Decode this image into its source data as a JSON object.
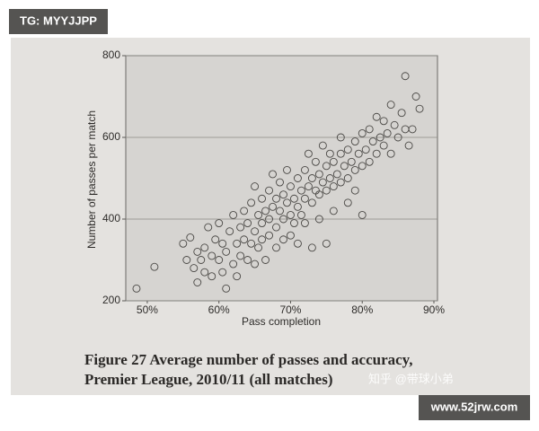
{
  "chart_data": {
    "type": "scatter",
    "title": [
      "Figure 27 Average number of passes and accuracy,",
      "Premier League, 2010/11 (all matches)"
    ],
    "x_label": "Pass completion",
    "y_label": "Number of passes per match",
    "xlim": [
      47,
      90.5
    ],
    "ylim": [
      200,
      800
    ],
    "xticks": [
      {
        "value": 50,
        "label": "50%"
      },
      {
        "value": 60,
        "label": "60%"
      },
      {
        "value": 70,
        "label": "70%"
      },
      {
        "value": 80,
        "label": "80%"
      },
      {
        "value": 90,
        "label": "90%"
      }
    ],
    "yticks": [
      200,
      400,
      600,
      800
    ],
    "grid": true,
    "color": "#4a4845",
    "x": [
      48.5,
      51,
      55,
      55.5,
      56,
      56.5,
      57,
      57,
      57.5,
      58,
      58,
      58.5,
      59,
      59,
      59.5,
      60,
      60,
      60.5,
      60.5,
      61,
      61,
      61.5,
      62,
      62,
      62.5,
      62.5,
      63,
      63,
      63.5,
      63.5,
      64,
      64,
      64.5,
      64.5,
      65,
      65,
      65,
      65.5,
      65.5,
      66,
      66,
      66,
      66.5,
      66.5,
      67,
      67,
      67,
      67.5,
      67.5,
      68,
      68,
      68,
      68.5,
      68.5,
      69,
      69,
      69,
      69.5,
      69.5,
      70,
      70,
      70,
      70.5,
      70.5,
      71,
      71,
      71,
      71.5,
      71.5,
      72,
      72,
      72,
      72.5,
      72.5,
      73,
      73,
      73,
      73.5,
      73.5,
      74,
      74,
      74,
      74.5,
      74.5,
      75,
      75,
      75,
      75.5,
      75.5,
      76,
      76,
      76,
      76.5,
      77,
      77,
      77,
      77.5,
      78,
      78,
      78,
      78.5,
      79,
      79,
      79,
      79.5,
      80,
      80,
      80,
      80.5,
      81,
      81,
      81.5,
      82,
      82,
      82.5,
      83,
      83,
      83.5,
      84,
      84,
      84.5,
      85,
      85.5,
      86,
      86,
      86.5,
      87,
      87.5,
      88
    ],
    "values": [
      230,
      283,
      340,
      300,
      355,
      280,
      320,
      245,
      300,
      330,
      270,
      380,
      310,
      260,
      350,
      300,
      390,
      270,
      340,
      230,
      320,
      370,
      290,
      410,
      340,
      260,
      380,
      310,
      420,
      350,
      300,
      390,
      440,
      340,
      370,
      290,
      480,
      410,
      330,
      390,
      450,
      350,
      420,
      300,
      400,
      470,
      360,
      430,
      510,
      380,
      450,
      330,
      420,
      490,
      400,
      460,
      350,
      440,
      520,
      410,
      480,
      360,
      450,
      390,
      430,
      500,
      340,
      470,
      410,
      450,
      520,
      390,
      480,
      560,
      440,
      500,
      330,
      470,
      540,
      460,
      510,
      400,
      490,
      580,
      470,
      530,
      340,
      500,
      560,
      480,
      540,
      420,
      510,
      490,
      560,
      600,
      530,
      500,
      570,
      440,
      540,
      520,
      590,
      470,
      560,
      530,
      610,
      410,
      570,
      540,
      620,
      590,
      560,
      650,
      600,
      580,
      640,
      610,
      560,
      680,
      630,
      600,
      660,
      750,
      620,
      580,
      620,
      700,
      670
    ]
  },
  "watermarks": {
    "tg": "TG: MYYJJPP",
    "zhihu": "知乎 @带球小弟",
    "site": "www.52jrw.com"
  }
}
